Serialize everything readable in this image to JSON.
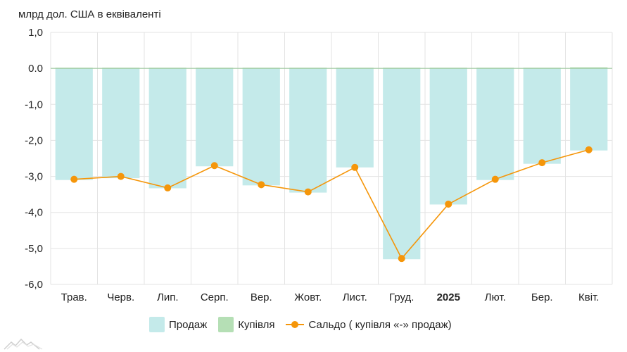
{
  "chart_data": {
    "type": "bar",
    "ylabel": "млрд дол. США в еквіваленті",
    "ylim": [
      -6.0,
      1.0
    ],
    "y_ticks": [
      "1,0",
      "0.0",
      "-1,0",
      "-2,0",
      "-3,0",
      "-4,0",
      "-5,0",
      "-6,0"
    ],
    "y_tick_values": [
      1,
      0,
      -1,
      -2,
      -3,
      -4,
      -5,
      -6
    ],
    "categories": [
      "Трав.",
      "Черв.",
      "Лип.",
      "Серп.",
      "Вер.",
      "Жовт.",
      "Лист.",
      "Груд.",
      "2025",
      "Лют.",
      "Бер.",
      "Квіт."
    ],
    "bold_categories": [
      "2025"
    ],
    "grid": true,
    "legend_position": "bottom",
    "series": [
      {
        "name": "Продаж",
        "kind": "bar",
        "color": "#c4eaea",
        "values": [
          -3.1,
          -3.05,
          -3.33,
          -2.72,
          -3.25,
          -3.45,
          -2.75,
          -5.3,
          -3.78,
          -3.1,
          -2.65,
          -2.28
        ]
      },
      {
        "name": "Купівля",
        "kind": "bar",
        "color": "#b5dfb5",
        "values": [
          0.02,
          0.02,
          0.02,
          0.02,
          0.02,
          0.02,
          0.02,
          0.02,
          0.02,
          0.02,
          0.02,
          0.03
        ]
      },
      {
        "name": "Сальдо ( купівля «-» продаж)",
        "kind": "line",
        "color": "#f5960a",
        "values": [
          -3.08,
          -3.0,
          -3.32,
          -2.7,
          -3.23,
          -3.43,
          -2.75,
          -5.28,
          -3.77,
          -3.08,
          -2.62,
          -2.26
        ]
      }
    ]
  }
}
